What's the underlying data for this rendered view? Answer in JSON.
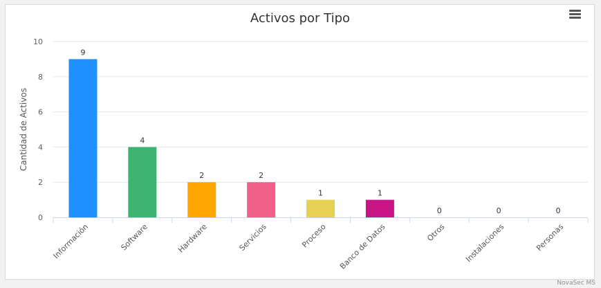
{
  "chart_data": {
    "type": "bar",
    "title": "Activos por Tipo",
    "xlabel": "",
    "ylabel": "Cantidad de Activos",
    "categories": [
      "Información",
      "Software",
      "Hardware",
      "Servicios",
      "Proceso",
      "Banco de Datos",
      "Otros",
      "Instalaciones",
      "Personas"
    ],
    "values": [
      9,
      4,
      2,
      2,
      1,
      1,
      0,
      0,
      0
    ],
    "colors": [
      "#1e90ff",
      "#3cb371",
      "#ffa500",
      "#f06088",
      "#e5d255",
      "#c71585",
      "#999999",
      "#999999",
      "#999999"
    ],
    "ylim": [
      0,
      10
    ],
    "yticks": [
      0,
      2,
      4,
      6,
      8,
      10
    ],
    "grid": true,
    "legend": "none",
    "data_labels": true
  },
  "credits": "NovaSec MS",
  "menu": {
    "icon": "hamburger-menu-icon"
  }
}
